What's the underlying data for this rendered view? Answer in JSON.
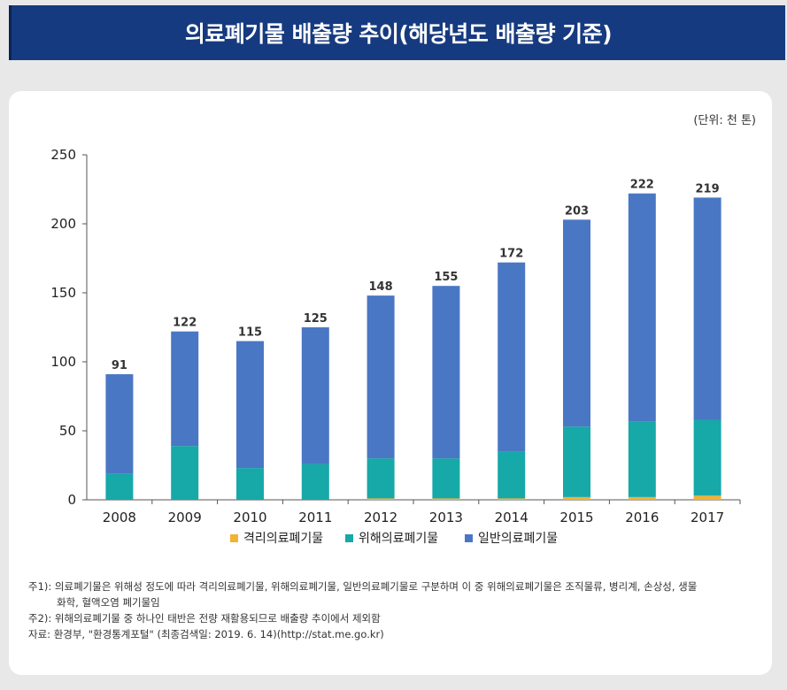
{
  "title": "의료폐기물 배출량 추이(해당년도 배출량 기준)",
  "unit_label": "(단위: 천 톤)",
  "colors": {
    "isolation": "#f2b233",
    "hazardous": "#17a8a8",
    "general": "#4a77c4",
    "title_bg": "#163a7f"
  },
  "chart_data": {
    "type": "bar",
    "stacked": true,
    "categories": [
      "2008",
      "2009",
      "2010",
      "2011",
      "2012",
      "2013",
      "2014",
      "2015",
      "2016",
      "2017"
    ],
    "series": [
      {
        "name": "격리의료폐기물",
        "values": [
          0,
          0,
          0,
          0,
          1,
          1,
          1,
          2,
          2,
          3
        ]
      },
      {
        "name": "위해의료폐기물",
        "values": [
          19,
          39,
          23,
          26,
          29,
          29,
          34,
          51,
          55,
          55
        ]
      },
      {
        "name": "일반의료폐기물",
        "values": [
          72,
          83,
          92,
          99,
          118,
          125,
          137,
          150,
          165,
          161
        ]
      }
    ],
    "totals": [
      91,
      122,
      115,
      125,
      148,
      155,
      172,
      203,
      222,
      219
    ],
    "ylim": [
      0,
      250
    ],
    "yticks": [
      0,
      50,
      100,
      150,
      200,
      250
    ],
    "legend": "bottom"
  },
  "notes": [
    "주1): 의료폐기물은 위해성 정도에 따라 격리의료폐기물, 위해의료폐기물, 일반의료폐기물로 구분하며 이 중 위해의료폐기물은 조직물류, 병리계, 손상성, 생물",
    "화학, 혈액오염 폐기물임",
    "주2): 위해의료폐기물 중 하나인 태반은 전량 재활용되므로 배출량 추이에서 제외함",
    "자료: 환경부, \"환경통계포털\" (최종검색일: 2019. 6. 14)(http://stat.me.go.kr)"
  ]
}
